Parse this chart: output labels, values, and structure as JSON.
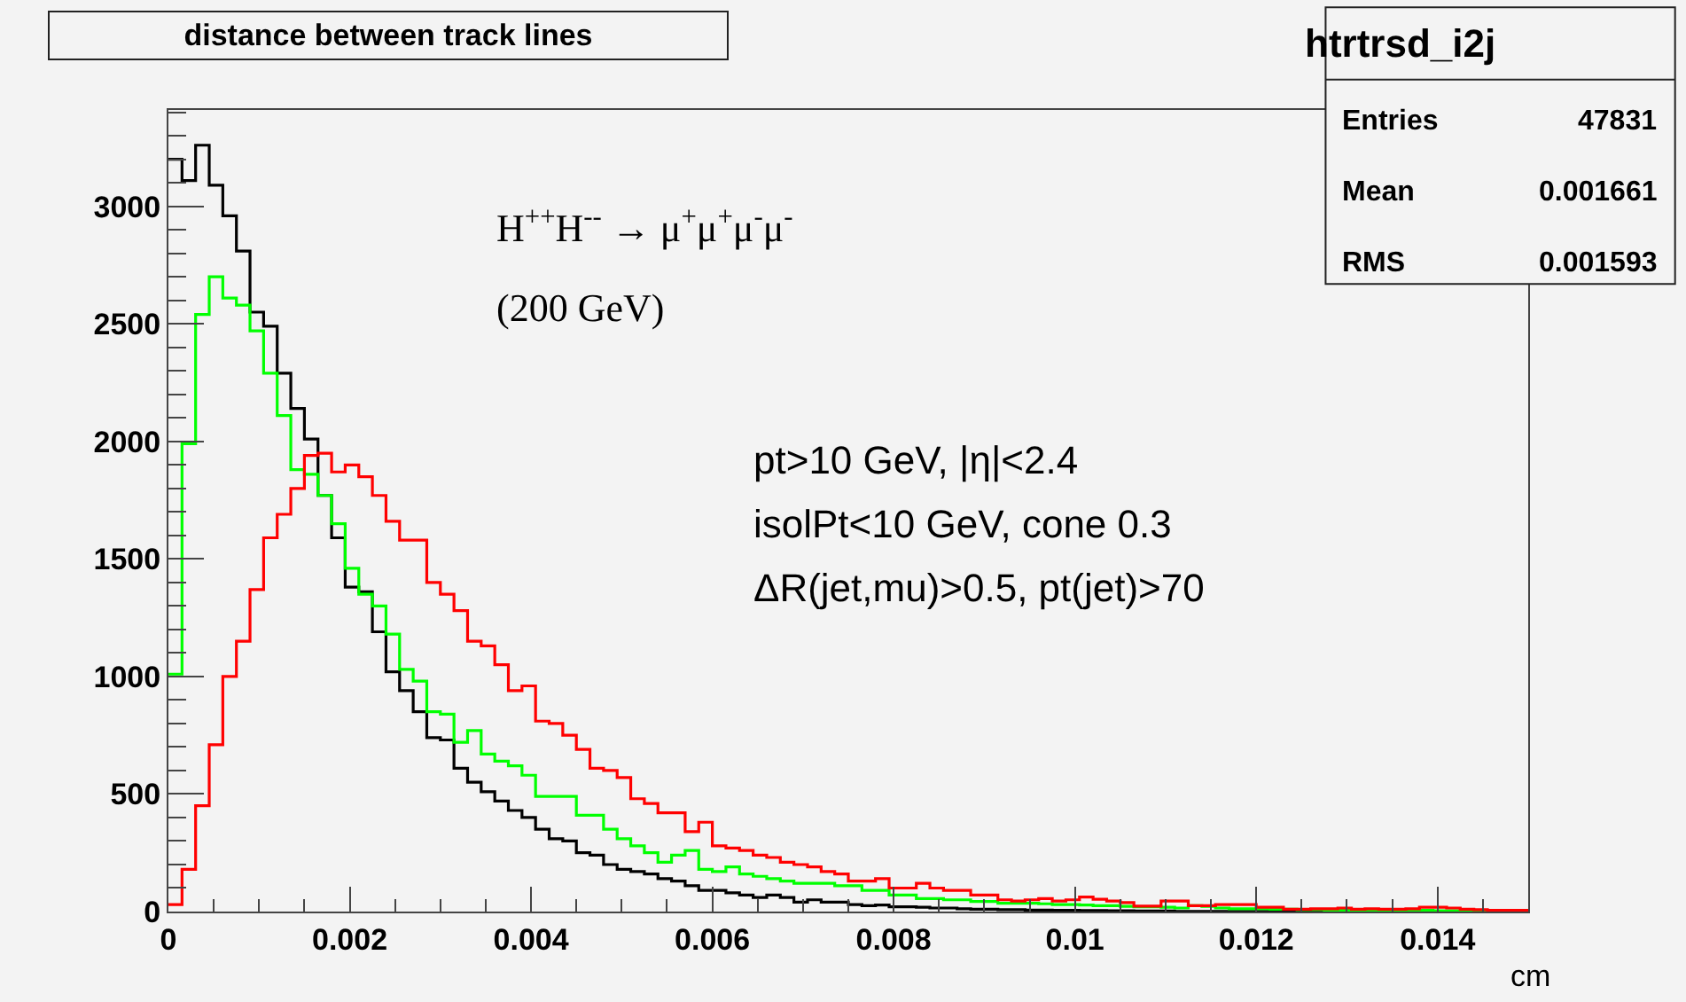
{
  "chart_data": {
    "type": "histogram",
    "title": "distance between track lines",
    "xlabel": "cm",
    "annotations": [
      "htrtrsd_i2j",
      "Entries",
      "47831",
      "Mean",
      "0.001661",
      "RMS",
      "0.001593",
      "H$^{++}$H$^{--}$ → μ$^{+}$μ$^{+}$μ$^{-}$μ$^{-}$",
      "(200 GeV)",
      "pt>10 GeV, |η|<2.4",
      "isolPt<10 GeV, cone 0.3",
      "ΔR(jet,mu)>0.5, pt(jet)>70"
    ],
    "bins": [
      0,
      0.00015,
      0.0003,
      0.00045,
      0.0006,
      0.00075,
      0.0009,
      0.00105,
      0.0012,
      0.00135,
      0.0015,
      0.00165,
      0.0018,
      0.00195,
      0.0021,
      0.00225,
      0.0024,
      0.00255,
      0.0027,
      0.00285,
      0.003,
      0.00315,
      0.0033,
      0.00345,
      0.0036,
      0.00375,
      0.0039,
      0.00405,
      0.0042,
      0.00435,
      0.0045,
      0.00465,
      0.0048,
      0.00495,
      0.0051,
      0.00525,
      0.0054,
      0.00555,
      0.0057,
      0.00585,
      0.006,
      0.00615,
      0.0063,
      0.00645,
      0.0066,
      0.00675,
      0.0069,
      0.00705,
      0.0072,
      0.00735,
      0.0075,
      0.00765,
      0.0078,
      0.00795,
      0.0081,
      0.00825,
      0.0084,
      0.00855,
      0.0087,
      0.00885,
      0.009,
      0.00915,
      0.0093,
      0.00945,
      0.0096,
      0.00975,
      0.0099,
      0.01005,
      0.0102,
      0.01035,
      0.0105,
      0.01065,
      0.0108,
      0.01095,
      0.0111,
      0.01125,
      0.0114,
      0.01155,
      0.0117,
      0.01185,
      0.012,
      0.01215,
      0.0123,
      0.01245,
      0.0126,
      0.01275,
      0.0129,
      0.01305,
      0.0132,
      0.01335,
      0.0135,
      0.01365,
      0.0138,
      0.01395,
      0.0141,
      0.01425,
      0.0144,
      0.01455,
      0.0147,
      0.01485,
      0.015
    ],
    "series": [
      {
        "color": "#000000",
        "values": [
          3200,
          3110,
          3260,
          3090,
          2960,
          2810,
          2550,
          2490,
          2290,
          2140,
          2010,
          1770,
          1590,
          1380,
          1360,
          1190,
          1020,
          940,
          850,
          740,
          730,
          610,
          550,
          510,
          470,
          430,
          400,
          350,
          310,
          300,
          250,
          240,
          200,
          180,
          170,
          160,
          140,
          130,
          110,
          90,
          90,
          80,
          70,
          60,
          70,
          60,
          40,
          50,
          40,
          40,
          30,
          25,
          28,
          20,
          20,
          18,
          15,
          15,
          12,
          10,
          10,
          8,
          8,
          6,
          6,
          5,
          5,
          4,
          4,
          3,
          3,
          2,
          2,
          2,
          1,
          1,
          1,
          1,
          1,
          1,
          1,
          1,
          1,
          1,
          1,
          0,
          0,
          0,
          0,
          0,
          0,
          0,
          0,
          0,
          0,
          0,
          0,
          0,
          0,
          0
        ]
      },
      {
        "color": "#00ff00",
        "values": [
          1010,
          1990,
          2540,
          2700,
          2610,
          2580,
          2470,
          2290,
          2110,
          1880,
          1860,
          1770,
          1650,
          1460,
          1350,
          1300,
          1180,
          1030,
          980,
          850,
          840,
          720,
          770,
          670,
          640,
          620,
          580,
          490,
          490,
          490,
          410,
          410,
          350,
          310,
          280,
          250,
          210,
          240,
          260,
          180,
          170,
          190,
          160,
          150,
          140,
          130,
          120,
          120,
          120,
          110,
          110,
          90,
          90,
          70,
          70,
          55,
          55,
          50,
          50,
          43,
          43,
          35,
          35,
          35,
          33,
          30,
          30,
          28,
          25,
          25,
          22,
          20,
          20,
          18,
          15,
          25,
          22,
          15,
          12,
          12,
          12,
          10,
          10,
          8,
          8,
          6,
          6,
          5,
          5,
          4,
          4,
          3,
          5,
          3,
          3,
          2,
          2,
          3,
          2,
          2
        ]
      },
      {
        "color": "#ff0000",
        "values": [
          30,
          180,
          450,
          710,
          1000,
          1150,
          1370,
          1590,
          1690,
          1800,
          1940,
          1950,
          1870,
          1900,
          1850,
          1770,
          1660,
          1580,
          1580,
          1400,
          1350,
          1280,
          1150,
          1130,
          1050,
          940,
          960,
          810,
          800,
          750,
          690,
          610,
          600,
          570,
          480,
          460,
          420,
          420,
          340,
          380,
          280,
          270,
          260,
          240,
          230,
          210,
          200,
          190,
          170,
          160,
          130,
          130,
          140,
          100,
          100,
          120,
          100,
          90,
          90,
          70,
          70,
          50,
          45,
          50,
          55,
          45,
          50,
          62,
          52,
          45,
          38,
          23,
          23,
          45,
          45,
          25,
          25,
          30,
          30,
          30,
          18,
          18,
          10,
          10,
          12,
          12,
          15,
          10,
          12,
          10,
          10,
          12,
          18,
          18,
          15,
          10,
          8,
          5,
          5,
          5
        ]
      }
    ],
    "xlim": [
      0,
      0.015
    ],
    "ylim": [
      0,
      3410
    ],
    "xticks": [
      0,
      0.002,
      0.004,
      0.006,
      0.008,
      0.01,
      0.012,
      0.014
    ],
    "yticks": [
      0,
      500,
      1000,
      1500,
      2000,
      2500,
      3000
    ],
    "grid": false
  }
}
